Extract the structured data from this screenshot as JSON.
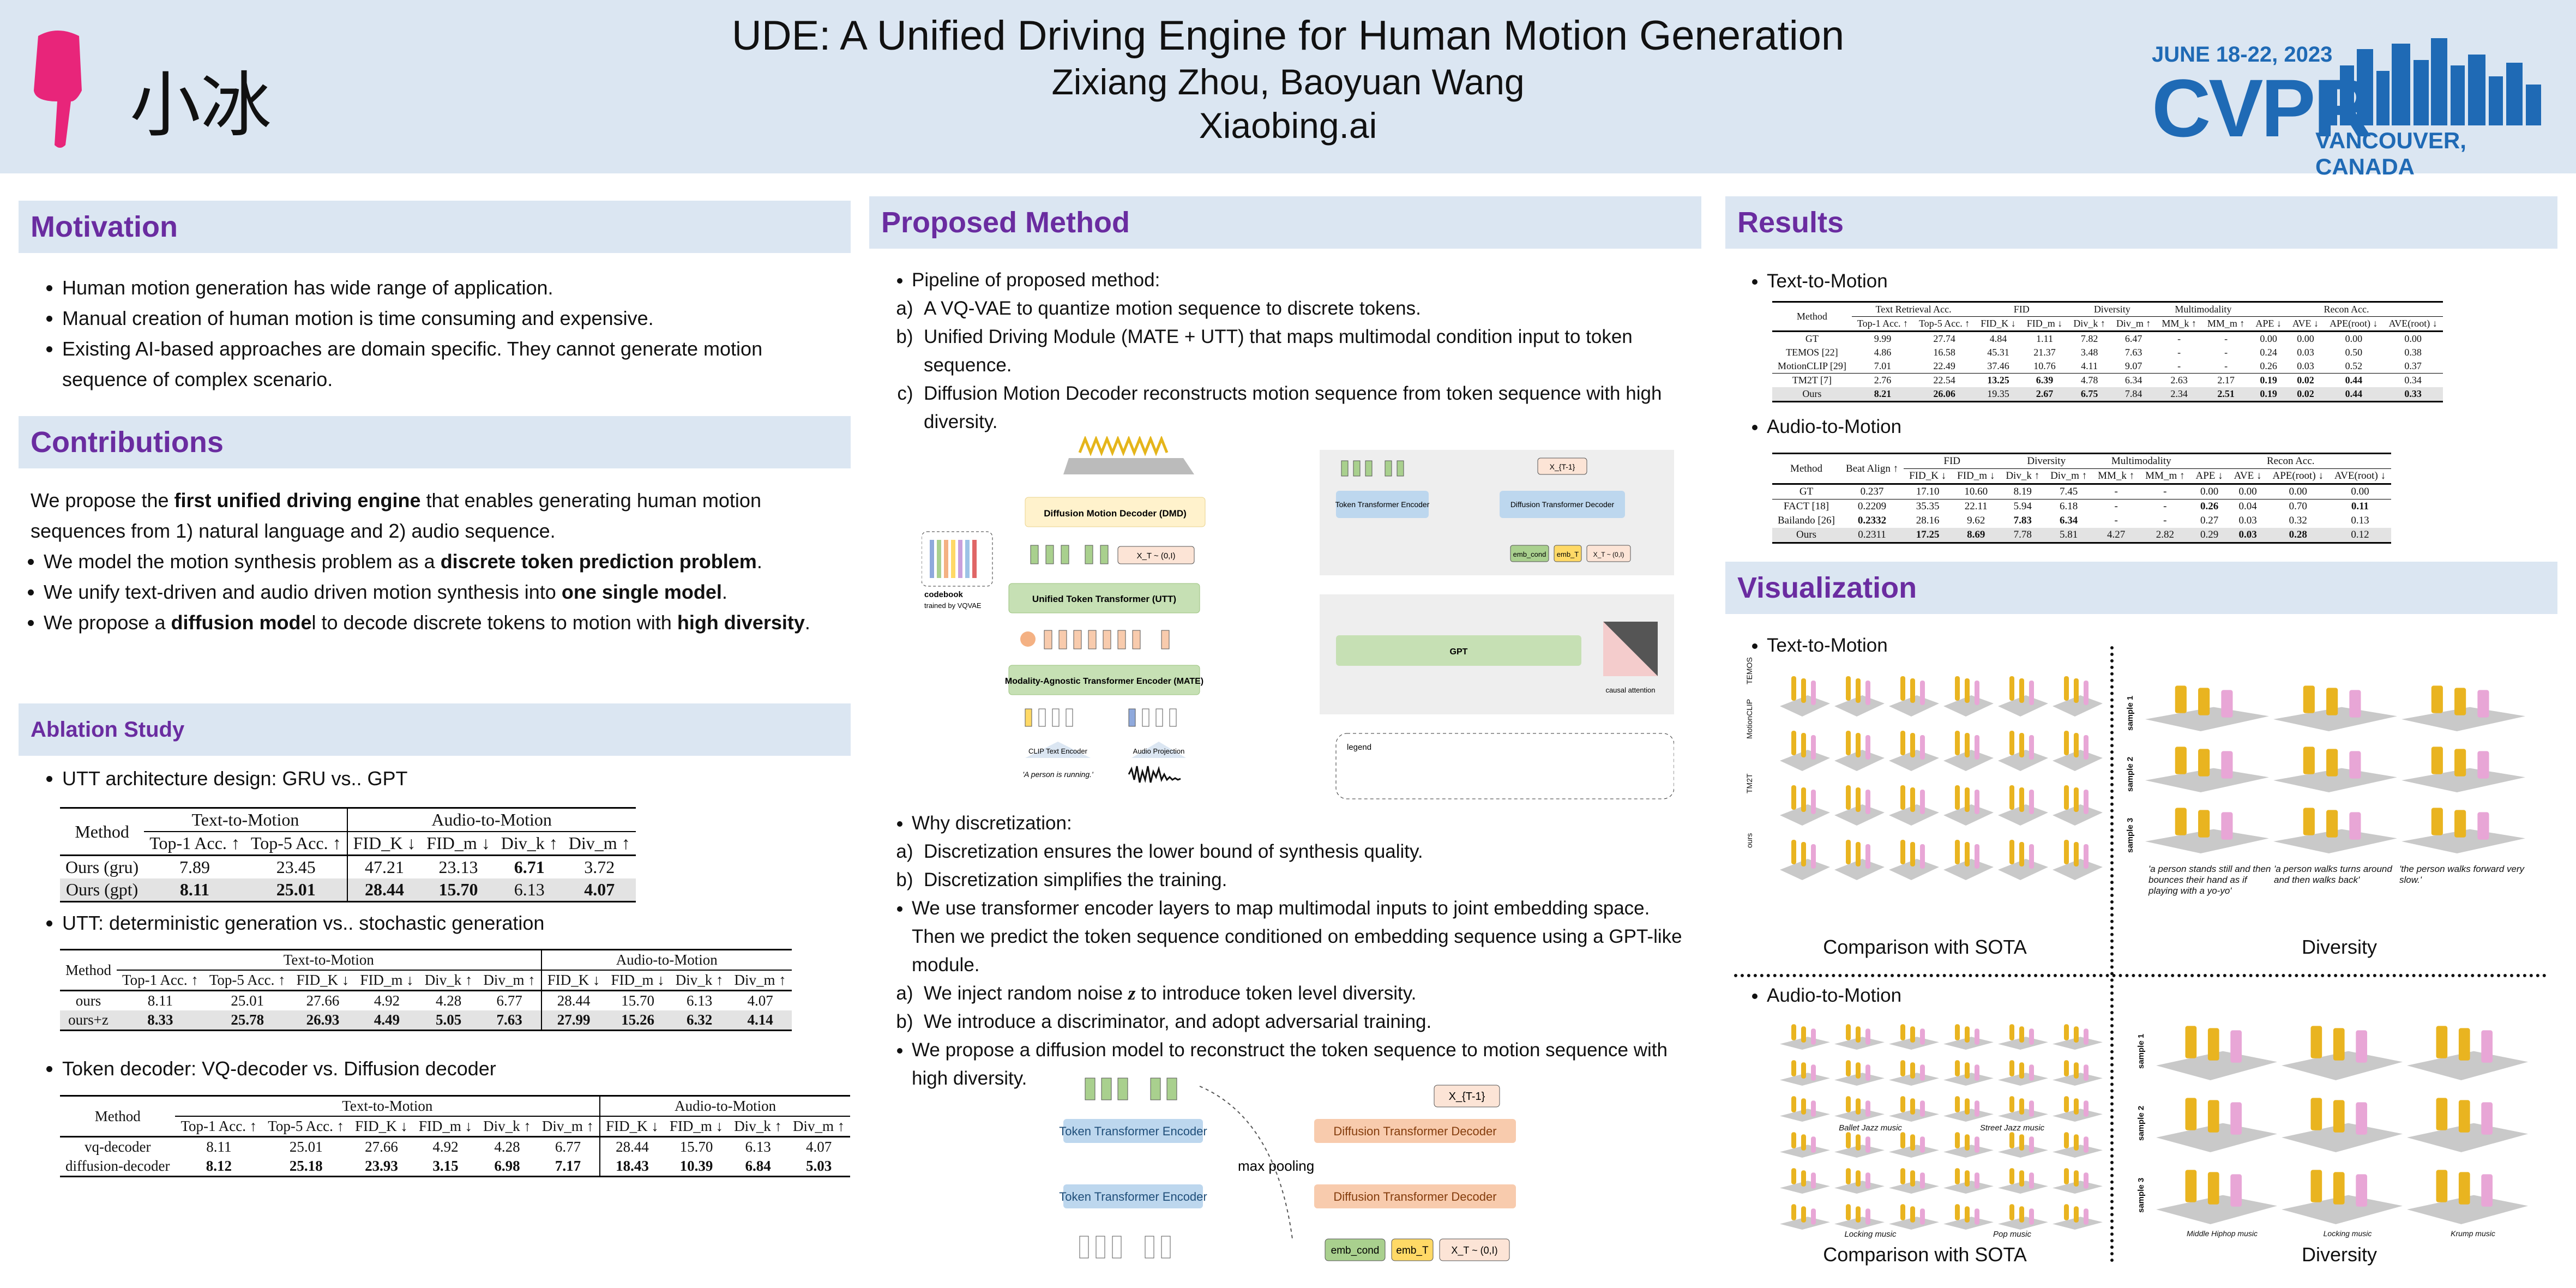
{
  "header": {
    "title": "UDE: A Unified Driving Engine for Human Motion Generation",
    "authors": "Zixiang Zhou, Baoyuan Wang",
    "affiliation": "Xiaobing.ai",
    "logo_text": "小冰",
    "conf_dates": "JUNE 18-22, 2023",
    "conf_name": "CVPR",
    "conf_location": "VANCOUVER, CANADA"
  },
  "motivation": {
    "heading": "Motivation",
    "bullets": [
      "Human motion generation has wide range of application.",
      "Manual creation of human motion is time consuming and expensive.",
      "Existing AI-based approaches are domain specific. They cannot generate motion sequence of complex scenario."
    ]
  },
  "contributions": {
    "heading": "Contributions",
    "intro_a": "We propose the ",
    "intro_bold": "first unified driving engine",
    "intro_b": " that enables generating human motion sequences from 1) natural language and 2) audio sequence.",
    "b1a": "We model the motion synthesis problem as a ",
    "b1bold": "discrete token prediction problem",
    "b1c": ".",
    "b2a": "We unify text-driven and audio driven motion synthesis into ",
    "b2bold": "one single model",
    "b2c": ".",
    "b3a": "We propose a ",
    "b3bold": "diffusion mode",
    "b3c": "l to decode discrete tokens to motion with ",
    "b3bold2": "high diversity",
    "b3d": "."
  },
  "ablation": {
    "heading": "Ablation Study",
    "item1": "UTT architecture design: GRU vs.. GPT",
    "item2": "UTT: deterministic generation vs.. stochastic generation",
    "item3": "Token decoder: VQ-decoder vs. Diffusion decoder",
    "t1": {
      "g1": "Text-to-Motion",
      "g2": "Audio-to-Motion",
      "cols": [
        "Method",
        "Top-1 Acc. ↑",
        "Top-5 Acc. ↑",
        "FID_K ↓",
        "FID_m ↓",
        "Div_k ↑",
        "Div_m ↑"
      ],
      "rows": [
        [
          "Ours (gru)",
          "7.89",
          "23.45",
          "47.21",
          "23.13",
          "6.71",
          "3.72"
        ],
        [
          "Ours (gpt)",
          "8.11",
          "25.01",
          "28.44",
          "15.70",
          "6.13",
          "4.07"
        ]
      ]
    },
    "t2": {
      "g1": "Text-to-Motion",
      "g2": "Audio-to-Motion",
      "cols": [
        "Method",
        "Top-1 Acc. ↑",
        "Top-5 Acc. ↑",
        "FID_K ↓",
        "FID_m ↓",
        "Div_k ↑",
        "Div_m ↑",
        "FID_K ↓",
        "FID_m ↓",
        "Div_k ↑",
        "Div_m ↑"
      ],
      "rows": [
        [
          "ours",
          "8.11",
          "25.01",
          "27.66",
          "4.92",
          "4.28",
          "6.77",
          "28.44",
          "15.70",
          "6.13",
          "4.07"
        ],
        [
          "ours+z",
          "8.33",
          "25.78",
          "26.93",
          "4.49",
          "5.05",
          "7.63",
          "27.99",
          "15.26",
          "6.32",
          "4.14"
        ]
      ]
    },
    "t3": {
      "g1": "Text-to-Motion",
      "g2": "Audio-to-Motion",
      "cols": [
        "Method",
        "Top-1 Acc. ↑",
        "Top-5 Acc. ↑",
        "FID_K ↓",
        "FID_m ↓",
        "Div_k ↑",
        "Div_m ↑",
        "FID_K ↓",
        "FID_m ↓",
        "Div_k ↑",
        "Div_m ↑"
      ],
      "rows": [
        [
          "vq-decoder",
          "8.11",
          "25.01",
          "27.66",
          "4.92",
          "4.28",
          "6.77",
          "28.44",
          "15.70",
          "6.13",
          "4.07"
        ],
        [
          "diffusion-decoder",
          "8.12",
          "25.18",
          "23.93",
          "3.15",
          "6.98",
          "7.17",
          "18.43",
          "10.39",
          "6.84",
          "5.03"
        ]
      ]
    }
  },
  "method": {
    "heading": "Proposed Method",
    "pipeline": "Pipeline of proposed method:",
    "steps": [
      "A VQ-VAE to quantize motion sequence to discrete tokens.",
      "Unified Driving Module (MATE + UTT) that maps multimodal condition input to token sequence.",
      "Diffusion Motion Decoder reconstructs motion sequence from token sequence with high diversity."
    ],
    "why": "Why discretization:",
    "why_items": [
      "Discretization ensures the lower bound of synthesis quality.",
      "Discretization simplifies the training."
    ],
    "enc": "We use transformer encoder layers to map multimodal inputs to joint embedding space. Then we predict the token sequence conditioned on embedding sequence using a GPT-like module.",
    "enc_items_a": "We inject random noise ",
    "enc_items_z": "z",
    "enc_items_b": " to introduce token level diversity.",
    "enc_items2": "We introduce a discriminator, and adopt adversarial training.",
    "diff": "We propose a diffusion model to reconstruct the token sequence to motion sequence with high diversity.",
    "diagram": {
      "dmd": "Diffusion Motion Decoder (DMD)",
      "utt": "Unified Token Transformer (UTT)",
      "mate": "Modality-Agnostic Transformer Encoder (MATE)",
      "clip": "CLIP Text Encoder",
      "audio": "Audio Projection",
      "prompt": "'A person is running.'",
      "codebook": "codebook",
      "codebook2": "trained by VQVAE",
      "xt": "X_T ~ (0,I)",
      "tte": "Token Transformer Encoder",
      "tde": "Diffusion Transformer Decoder",
      "xt1": "X_{T-1}",
      "emb_cond": "emb_cond",
      "emb_t": "emb_T",
      "gpt": "GPT",
      "causal": "causal attention",
      "legend": "legend",
      "max_pool": "max pooling"
    }
  },
  "results": {
    "heading": "Results",
    "t2m": "Text-to-Motion",
    "a2m": "Audio-to-Motion",
    "r1": {
      "groups": [
        "Text Retrieval Acc.",
        "FID",
        "Diversity",
        "Multimodality",
        "Recon Acc."
      ],
      "cols": [
        "Method",
        "Top-1 Acc. ↑",
        "Top-5 Acc. ↑",
        "FID_K ↓",
        "FID_m ↓",
        "Div_k ↑",
        "Div_m ↑",
        "MM_k ↑",
        "MM_m ↑",
        "APE ↓",
        "AVE ↓",
        "APE(root) ↓",
        "AVE(root) ↓"
      ],
      "rows": [
        [
          "GT",
          "9.99",
          "27.74",
          "4.84",
          "1.11",
          "7.82",
          "6.47",
          "-",
          "-",
          "0.00",
          "0.00",
          "0.00",
          "0.00"
        ],
        [
          "TEMOS [22]",
          "4.86",
          "16.58",
          "45.31",
          "21.37",
          "3.48",
          "7.63",
          "-",
          "-",
          "0.24",
          "0.03",
          "0.50",
          "0.38"
        ],
        [
          "MotionCLIP [29]",
          "7.01",
          "22.49",
          "37.46",
          "10.76",
          "4.11",
          "9.07",
          "-",
          "-",
          "0.26",
          "0.03",
          "0.52",
          "0.37"
        ],
        [
          "TM2T [7]",
          "2.76",
          "22.54",
          "13.25",
          "6.39",
          "4.78",
          "6.34",
          "2.63",
          "2.17",
          "0.19",
          "0.02",
          "0.44",
          "0.34"
        ],
        [
          "Ours",
          "8.21",
          "26.06",
          "19.35",
          "2.67",
          "6.75",
          "7.84",
          "2.34",
          "2.51",
          "0.19",
          "0.02",
          "0.44",
          "0.33"
        ]
      ]
    },
    "r2": {
      "groups": [
        "FID",
        "Diversity",
        "Multimodality",
        "Recon Acc."
      ],
      "cols": [
        "Method",
        "Beat Align ↑",
        "FID_K ↓",
        "FID_m ↓",
        "Div_k ↑",
        "Div_m ↑",
        "MM_k ↑",
        "MM_m ↑",
        "APE ↓",
        "AVE ↓",
        "APE(root) ↓",
        "AVE(root) ↓"
      ],
      "rows": [
        [
          "GT",
          "0.237",
          "17.10",
          "10.60",
          "8.19",
          "7.45",
          "-",
          "-",
          "0.00",
          "0.00",
          "0.00",
          "0.00"
        ],
        [
          "FACT [18]",
          "0.2209",
          "35.35",
          "22.11",
          "5.94",
          "6.18",
          "-",
          "-",
          "0.26",
          "0.04",
          "0.70",
          "0.11"
        ],
        [
          "Bailando [26]",
          "0.2332",
          "28.16",
          "9.62",
          "7.83",
          "6.34",
          "-",
          "-",
          "0.27",
          "0.03",
          "0.32",
          "0.13"
        ],
        [
          "Ours",
          "0.2311",
          "17.25",
          "8.69",
          "7.78",
          "5.81",
          "4.27",
          "2.82",
          "0.29",
          "0.03",
          "0.28",
          "0.12"
        ]
      ]
    }
  },
  "visualization": {
    "heading": "Visualization",
    "t2m": "Text-to-Motion",
    "a2m": "Audio-to-Motion",
    "cmp": "Comparison with SOTA",
    "div": "Diversity",
    "row_labels": [
      "TEMOS",
      "MotionCLIP",
      "TM2T",
      "ours"
    ],
    "sample_labels": [
      "sample 1",
      "sample 2",
      "sample 3"
    ],
    "cap1": "'a person stands still and then bounces their hand as if playing with a yo-yo'",
    "cap2": "'a person walks turns around and then walks back'",
    "cap3": "'the person walks forward very slow.'",
    "music": [
      "Ballet Jazz music",
      "Street Jazz music",
      "Locking music",
      "Pop music"
    ],
    "div_music": [
      "Middle Hiphop music",
      "Locking music",
      "Krump music"
    ]
  },
  "colors": {
    "header_bg": "#dbe6f2",
    "section_title": "#6a2ca0",
    "cvpr_blue": "#1f6ab5",
    "logo_pink": "#e8257a"
  }
}
